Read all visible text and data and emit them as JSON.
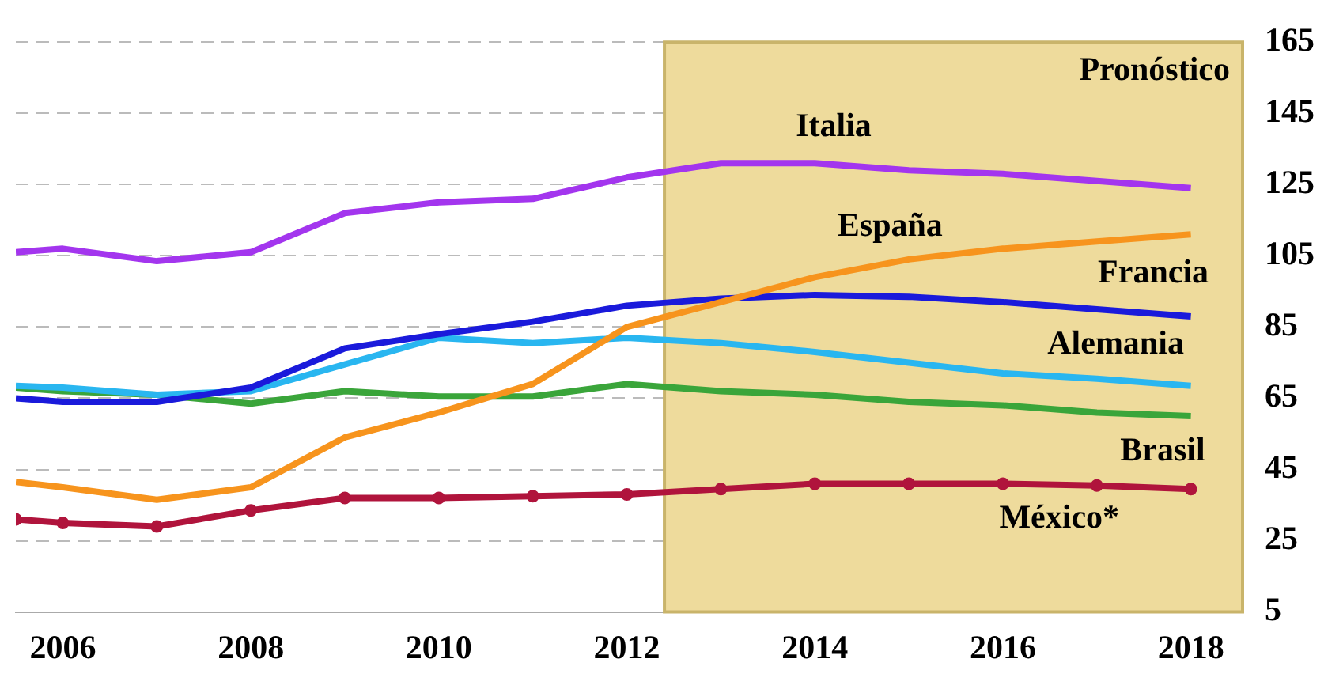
{
  "chart_data": {
    "type": "line",
    "x": [
      2005.5,
      2006,
      2007,
      2008,
      2009,
      2010,
      2011,
      2012,
      2013,
      2014,
      2015,
      2016,
      2017,
      2018
    ],
    "series": [
      {
        "name": "Italia",
        "color": "#a335ee",
        "values": [
          106,
          107,
          103.5,
          106,
          117,
          120,
          121,
          127,
          131,
          131,
          129,
          128,
          126,
          124
        ]
      },
      {
        "name": "España",
        "color": "#f7941d",
        "values": [
          41.5,
          40,
          36.5,
          40,
          54,
          61,
          69,
          85,
          92,
          99,
          104,
          107,
          109,
          111
        ]
      },
      {
        "name": "Francia",
        "color": "#1a1adb",
        "values": [
          65,
          64,
          64,
          68,
          79,
          83,
          86.5,
          91,
          93,
          94,
          93.5,
          92,
          90,
          88
        ]
      },
      {
        "name": "Alemania",
        "color": "#29b6f0",
        "values": [
          68.5,
          68,
          66,
          67,
          74.5,
          82,
          80.5,
          82,
          80.5,
          78,
          75,
          72,
          70.5,
          68.5
        ]
      },
      {
        "name": "Brasil",
        "color": "#3aa53a",
        "values": [
          68,
          67,
          66,
          63.5,
          67,
          65.5,
          65.5,
          69,
          67,
          66,
          64,
          63,
          61,
          60
        ]
      },
      {
        "name": "México*",
        "color": "#b0143c",
        "marker": "circle",
        "values": [
          31,
          30,
          29,
          33.5,
          37,
          37,
          37.5,
          38,
          39.5,
          41,
          41,
          41,
          40.5,
          39.5
        ]
      }
    ],
    "xlim": [
      2005.5,
      2018.55
    ],
    "xticks": [
      2006,
      2008,
      2010,
      2012,
      2014,
      2016,
      2018
    ],
    "ylim": [
      5,
      165
    ],
    "yticks": [
      5,
      25,
      45,
      65,
      85,
      105,
      125,
      145,
      165
    ],
    "grid": "y",
    "legend": false,
    "line_style": "solid",
    "bands": [
      {
        "axis": "x",
        "from": 2012.4,
        "to": 2018.55,
        "label": "Pronóstico",
        "color": "#eedb9c"
      }
    ]
  }
}
